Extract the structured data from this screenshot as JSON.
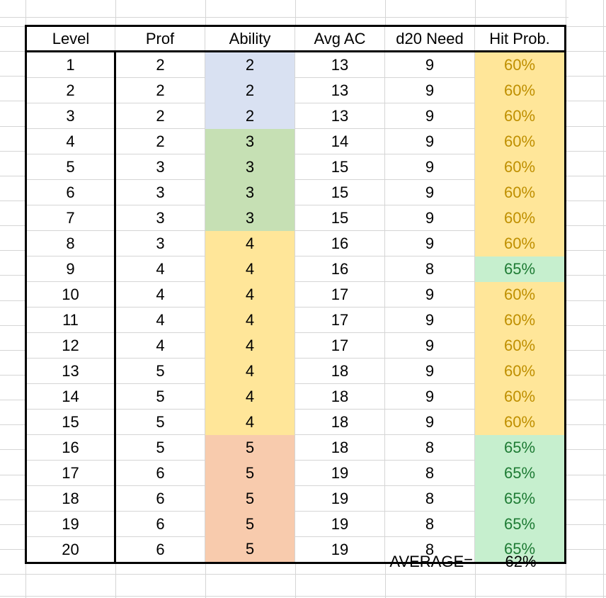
{
  "table": {
    "headers": [
      "Level",
      "Prof",
      "Ability",
      "Avg AC",
      "d20 Need",
      "Hit Prob."
    ],
    "rows": [
      {
        "level": "1",
        "prof": "2",
        "ability": "2",
        "avg_ac": "13",
        "d20_need": "9",
        "hit_prob": "60%",
        "ability_fill": "blue",
        "hit_fill": "yellow"
      },
      {
        "level": "2",
        "prof": "2",
        "ability": "2",
        "avg_ac": "13",
        "d20_need": "9",
        "hit_prob": "60%",
        "ability_fill": "blue",
        "hit_fill": "yellow"
      },
      {
        "level": "3",
        "prof": "2",
        "ability": "2",
        "avg_ac": "13",
        "d20_need": "9",
        "hit_prob": "60%",
        "ability_fill": "blue",
        "hit_fill": "yellow"
      },
      {
        "level": "4",
        "prof": "2",
        "ability": "3",
        "avg_ac": "14",
        "d20_need": "9",
        "hit_prob": "60%",
        "ability_fill": "green",
        "hit_fill": "yellow"
      },
      {
        "level": "5",
        "prof": "3",
        "ability": "3",
        "avg_ac": "15",
        "d20_need": "9",
        "hit_prob": "60%",
        "ability_fill": "green",
        "hit_fill": "yellow"
      },
      {
        "level": "6",
        "prof": "3",
        "ability": "3",
        "avg_ac": "15",
        "d20_need": "9",
        "hit_prob": "60%",
        "ability_fill": "green",
        "hit_fill": "yellow"
      },
      {
        "level": "7",
        "prof": "3",
        "ability": "3",
        "avg_ac": "15",
        "d20_need": "9",
        "hit_prob": "60%",
        "ability_fill": "green",
        "hit_fill": "yellow"
      },
      {
        "level": "8",
        "prof": "3",
        "ability": "4",
        "avg_ac": "16",
        "d20_need": "9",
        "hit_prob": "60%",
        "ability_fill": "yellow",
        "hit_fill": "yellow"
      },
      {
        "level": "9",
        "prof": "4",
        "ability": "4",
        "avg_ac": "16",
        "d20_need": "8",
        "hit_prob": "65%",
        "ability_fill": "yellow",
        "hit_fill": "mint"
      },
      {
        "level": "10",
        "prof": "4",
        "ability": "4",
        "avg_ac": "17",
        "d20_need": "9",
        "hit_prob": "60%",
        "ability_fill": "yellow",
        "hit_fill": "yellow"
      },
      {
        "level": "11",
        "prof": "4",
        "ability": "4",
        "avg_ac": "17",
        "d20_need": "9",
        "hit_prob": "60%",
        "ability_fill": "yellow",
        "hit_fill": "yellow"
      },
      {
        "level": "12",
        "prof": "4",
        "ability": "4",
        "avg_ac": "17",
        "d20_need": "9",
        "hit_prob": "60%",
        "ability_fill": "yellow",
        "hit_fill": "yellow"
      },
      {
        "level": "13",
        "prof": "5",
        "ability": "4",
        "avg_ac": "18",
        "d20_need": "9",
        "hit_prob": "60%",
        "ability_fill": "yellow",
        "hit_fill": "yellow"
      },
      {
        "level": "14",
        "prof": "5",
        "ability": "4",
        "avg_ac": "18",
        "d20_need": "9",
        "hit_prob": "60%",
        "ability_fill": "yellow",
        "hit_fill": "yellow"
      },
      {
        "level": "15",
        "prof": "5",
        "ability": "4",
        "avg_ac": "18",
        "d20_need": "9",
        "hit_prob": "60%",
        "ability_fill": "yellow",
        "hit_fill": "yellow"
      },
      {
        "level": "16",
        "prof": "5",
        "ability": "5",
        "avg_ac": "18",
        "d20_need": "8",
        "hit_prob": "65%",
        "ability_fill": "orange",
        "hit_fill": "mint"
      },
      {
        "level": "17",
        "prof": "6",
        "ability": "5",
        "avg_ac": "19",
        "d20_need": "8",
        "hit_prob": "65%",
        "ability_fill": "orange",
        "hit_fill": "mint"
      },
      {
        "level": "18",
        "prof": "6",
        "ability": "5",
        "avg_ac": "19",
        "d20_need": "8",
        "hit_prob": "65%",
        "ability_fill": "orange",
        "hit_fill": "mint"
      },
      {
        "level": "19",
        "prof": "6",
        "ability": "5",
        "avg_ac": "19",
        "d20_need": "8",
        "hit_prob": "65%",
        "ability_fill": "orange",
        "hit_fill": "mint"
      },
      {
        "level": "20",
        "prof": "6",
        "ability": "5",
        "avg_ac": "19",
        "d20_need": "8",
        "hit_prob": "65%",
        "ability_fill": "orange",
        "hit_fill": "mint"
      }
    ]
  },
  "summary": {
    "label": "AVERAGE=",
    "value": "62%"
  },
  "colors": {
    "fill_blue": "#d9e1f2",
    "fill_green": "#c6e0b4",
    "fill_yellow": "#ffe699",
    "fill_orange": "#f8cbad",
    "fill_mint": "#c6efce",
    "text_gold": "#bf8f00",
    "text_green": "#1e7b34",
    "gridline": "#d5d5d5",
    "border": "#000000"
  }
}
